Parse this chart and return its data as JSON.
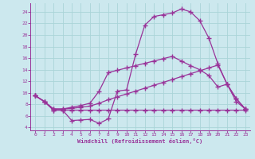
{
  "xlabel": "Windchill (Refroidissement éolien,°C)",
  "bg_color": "#cce8ee",
  "line_color": "#993399",
  "xlim": [
    -0.5,
    23.5
  ],
  "ylim": [
    3.5,
    25.5
  ],
  "xticks": [
    0,
    1,
    2,
    3,
    4,
    5,
    6,
    7,
    8,
    9,
    10,
    11,
    12,
    13,
    14,
    15,
    16,
    17,
    18,
    19,
    20,
    21,
    22,
    23
  ],
  "yticks": [
    4,
    6,
    8,
    10,
    12,
    14,
    16,
    18,
    20,
    22,
    24
  ],
  "grid_color": "#aad4d8",
  "line1_x": [
    0,
    1,
    2,
    3,
    4,
    5,
    6,
    7,
    8,
    9,
    10,
    11,
    12,
    13,
    14,
    15,
    16,
    17,
    18,
    19,
    20,
    21,
    22,
    23
  ],
  "line1_y": [
    9.5,
    8.5,
    7.0,
    7.0,
    5.2,
    5.3,
    5.4,
    4.7,
    5.5,
    10.3,
    10.5,
    16.7,
    21.7,
    23.2,
    23.5,
    23.8,
    24.5,
    24.0,
    22.5,
    19.5,
    15.0,
    11.5,
    8.5,
    7.2
  ],
  "line2_x": [
    0,
    1,
    2,
    3,
    4,
    5,
    6,
    7,
    8,
    9,
    10,
    11,
    12,
    13,
    14,
    15,
    16,
    17,
    18,
    19,
    20,
    21,
    22,
    23
  ],
  "line2_y": [
    9.5,
    8.5,
    7.0,
    7.0,
    7.0,
    7.0,
    7.0,
    7.0,
    7.0,
    7.0,
    7.0,
    7.0,
    7.0,
    7.0,
    7.0,
    7.0,
    7.0,
    7.0,
    7.0,
    7.0,
    7.0,
    7.0,
    7.0,
    7.0
  ],
  "line3_x": [
    0,
    1,
    2,
    3,
    4,
    5,
    6,
    7,
    8,
    9,
    10,
    11,
    12,
    13,
    14,
    15,
    16,
    17,
    18,
    19,
    20,
    21,
    22,
    23
  ],
  "line3_y": [
    9.5,
    8.5,
    7.2,
    7.2,
    7.3,
    7.5,
    7.7,
    8.2,
    8.8,
    9.3,
    9.8,
    10.3,
    10.8,
    11.3,
    11.8,
    12.3,
    12.8,
    13.3,
    13.8,
    14.3,
    14.8,
    11.5,
    9.0,
    7.2
  ],
  "line4_x": [
    0,
    1,
    2,
    3,
    4,
    5,
    6,
    7,
    8,
    9,
    10,
    11,
    12,
    13,
    14,
    15,
    16,
    17,
    18,
    19,
    20,
    21,
    22,
    23
  ],
  "line4_y": [
    9.5,
    8.5,
    7.2,
    7.2,
    7.5,
    7.8,
    8.2,
    10.3,
    13.5,
    13.9,
    14.3,
    14.7,
    15.1,
    15.5,
    15.9,
    16.3,
    15.5,
    14.7,
    14.0,
    13.0,
    11.0,
    11.5,
    9.0,
    7.2
  ]
}
